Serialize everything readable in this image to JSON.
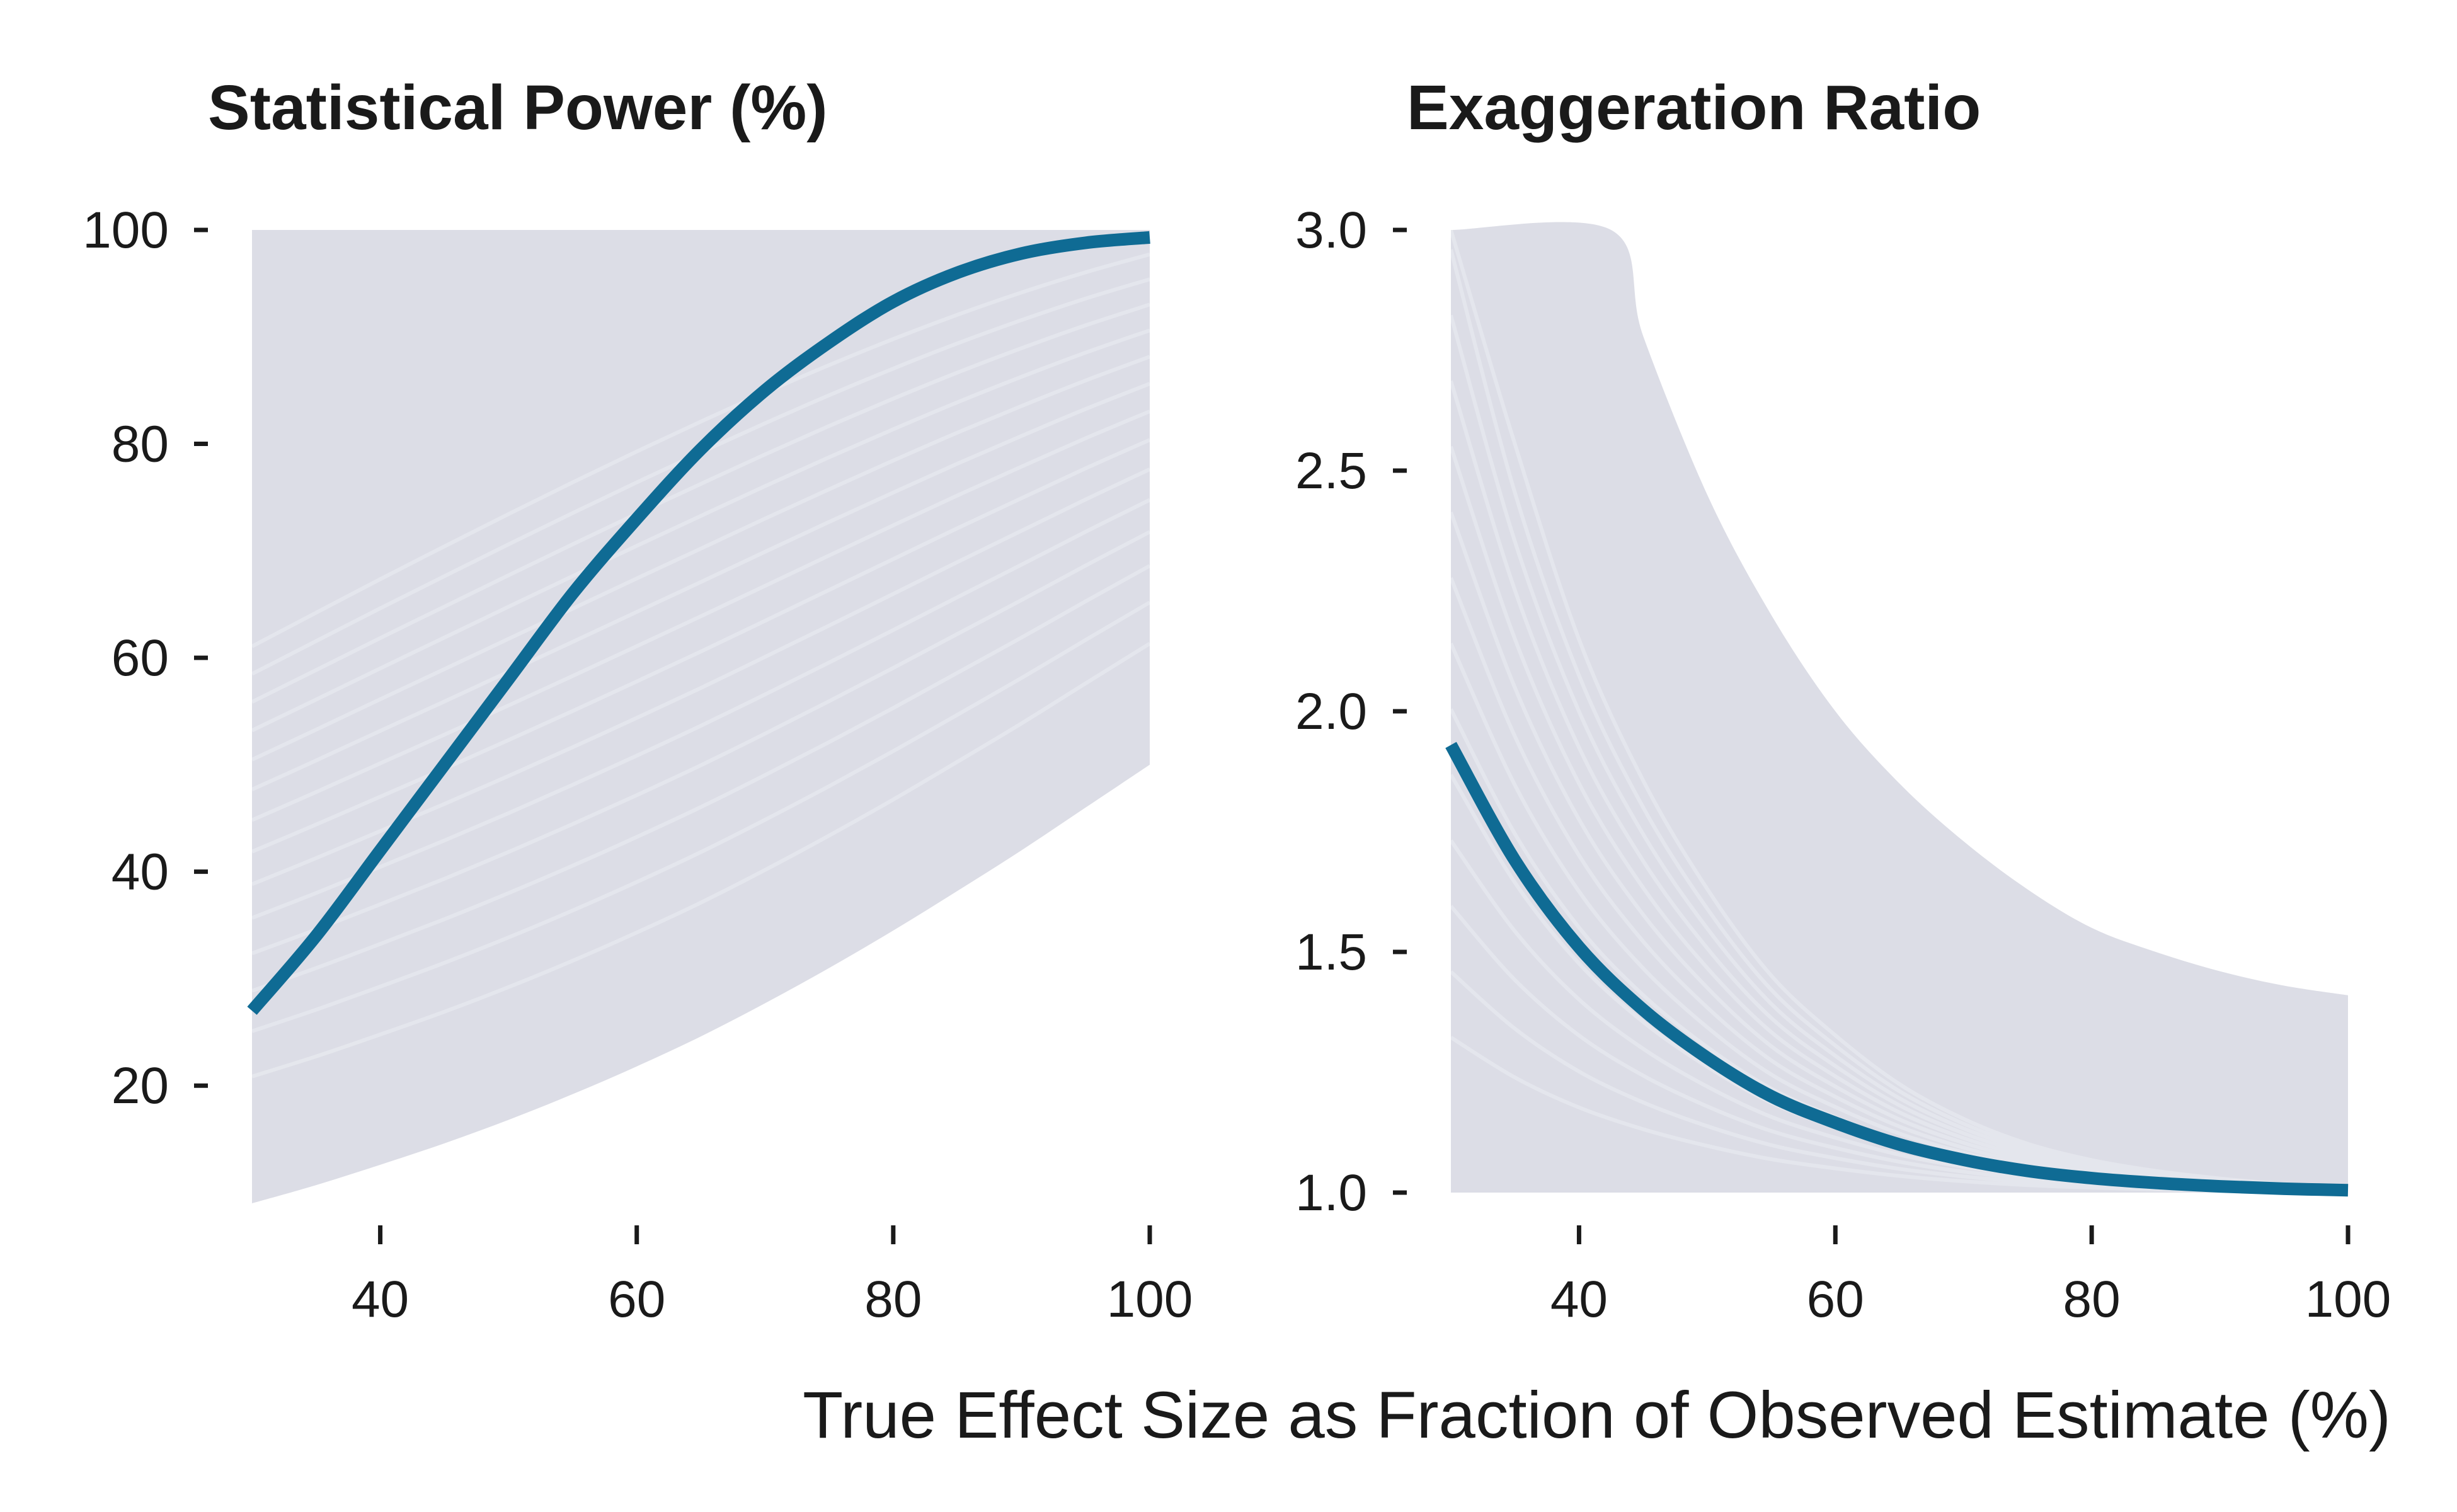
{
  "colors": {
    "background": "#ffffff",
    "band": "#dcdde6",
    "band_streak": "#eceef3",
    "highlight": "#0f6b94",
    "text": "#1a1a1a"
  },
  "shared_xlabel": "True Effect Size as Fraction of Observed Estimate (%)",
  "chart_data": [
    {
      "type": "line",
      "title": "Statistical Power (%)",
      "xlim": [
        30,
        100
      ],
      "ylim": [
        10,
        100
      ],
      "x_ticks": [
        40,
        60,
        80,
        100
      ],
      "y_ticks": [
        20,
        40,
        60,
        80,
        100
      ],
      "x_tick_labels": [
        "40",
        "60",
        "80",
        "100"
      ],
      "y_tick_labels": [
        "20",
        "40",
        "60",
        "80",
        "100"
      ],
      "grid": false,
      "series": [
        {
          "role": "highlight",
          "x": [
            30,
            35,
            40,
            45,
            50,
            55,
            60,
            65,
            70,
            75,
            80,
            85,
            90,
            95,
            100
          ],
          "y": [
            27,
            34,
            42,
            50,
            58,
            66,
            73,
            79.5,
            85,
            89.5,
            93.3,
            96,
            97.8,
            98.8,
            99.3
          ]
        }
      ],
      "band": {
        "x": [
          30,
          35,
          40,
          45,
          50,
          55,
          60,
          65,
          70,
          75,
          80,
          85,
          90,
          95,
          100
        ],
        "lower": [
          9,
          10.7,
          12.6,
          14.6,
          16.8,
          19.2,
          21.8,
          24.6,
          27.7,
          31.0,
          34.5,
          38.2,
          42.0,
          46.0,
          50.0
        ],
        "upper": [
          100,
          100,
          100,
          100,
          100,
          100,
          100,
          100,
          100,
          100,
          100,
          100,
          100,
          100,
          100
        ]
      }
    },
    {
      "type": "line",
      "title": "Exaggeration Ratio",
      "xlim": [
        30,
        100
      ],
      "ylim": [
        1.0,
        3.0
      ],
      "x_ticks": [
        40,
        60,
        80,
        100
      ],
      "y_ticks": [
        1.0,
        1.5,
        2.0,
        2.5,
        3.0
      ],
      "x_tick_labels": [
        "40",
        "60",
        "80",
        "100"
      ],
      "y_tick_labels": [
        "1.0",
        "1.5",
        "2.0",
        "2.5",
        "3.0"
      ],
      "grid": false,
      "series": [
        {
          "role": "highlight",
          "x": [
            30,
            35,
            40,
            45,
            50,
            55,
            60,
            65,
            70,
            75,
            80,
            85,
            90,
            95,
            100
          ],
          "y": [
            1.93,
            1.69,
            1.51,
            1.38,
            1.28,
            1.2,
            1.145,
            1.1,
            1.068,
            1.045,
            1.03,
            1.02,
            1.013,
            1.008,
            1.005
          ]
        }
      ],
      "band": {
        "x": [
          30,
          42.5,
          45,
          50,
          55,
          60,
          65,
          70,
          75,
          80,
          85,
          90,
          95,
          100
        ],
        "lower": [
          1.0,
          1.0,
          1.0,
          1.0,
          1.0,
          1.0,
          1.0,
          1.0,
          1.0,
          1.0,
          1.0,
          1.0,
          1.0,
          1.0
        ],
        "upper": [
          3.0,
          3.0,
          2.78,
          2.45,
          2.2,
          2.0,
          1.85,
          1.73,
          1.63,
          1.55,
          1.5,
          1.46,
          1.43,
          1.41
        ]
      }
    }
  ]
}
